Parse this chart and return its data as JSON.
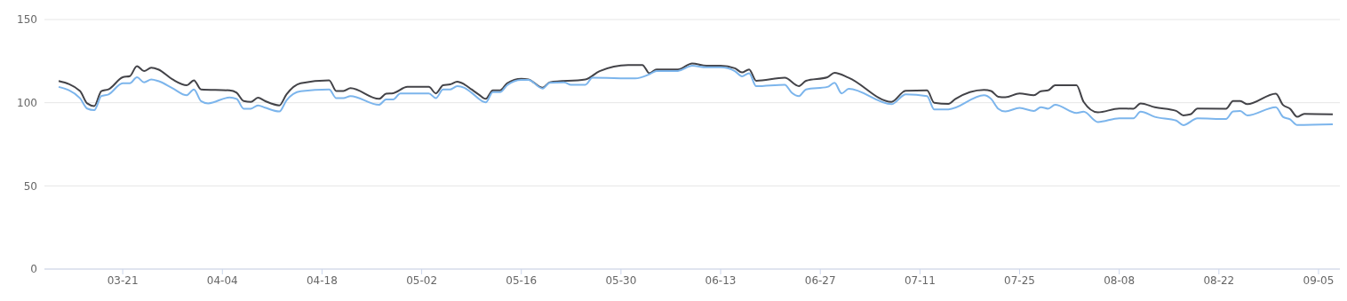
{
  "chart_data": {
    "type": "line",
    "xlim": [
      "--03-10",
      "--09-08"
    ],
    "xticks": [
      {
        "value": "--03-21",
        "label": "03-21"
      },
      {
        "value": "--04-04",
        "label": "04-04"
      },
      {
        "value": "--04-18",
        "label": "04-18"
      },
      {
        "value": "--05-02",
        "label": "05-02"
      },
      {
        "value": "--05-16",
        "label": "05-16"
      },
      {
        "value": "--05-30",
        "label": "05-30"
      },
      {
        "value": "--06-13",
        "label": "06-13"
      },
      {
        "value": "--06-27",
        "label": "06-27"
      },
      {
        "value": "--07-11",
        "label": "07-11"
      },
      {
        "value": "--07-25",
        "label": "07-25"
      },
      {
        "value": "--08-08",
        "label": "08-08"
      },
      {
        "value": "--08-22",
        "label": "08-22"
      },
      {
        "value": "--09-05",
        "label": "09-05"
      }
    ],
    "ylim": [
      0,
      150
    ],
    "yticks": [
      0,
      50,
      100,
      150
    ],
    "grid": "y",
    "marker": "none",
    "line_style": "solid",
    "series": [
      {
        "color": "#434348",
        "x": [
          "--03-12",
          "--03-15",
          "--03-16",
          "--03-17",
          "--03-18",
          "--03-19",
          "--03-21",
          "--03-22",
          "--03-23",
          "--03-24",
          "--03-25",
          "--03-26",
          "--03-28",
          "--03-30",
          "--03-31",
          "--04-01",
          "--04-05",
          "--04-06",
          "--04-07",
          "--04-08",
          "--04-09",
          "--04-10",
          "--04-12",
          "--04-13",
          "--04-15",
          "--04-19",
          "--04-20",
          "--04-21",
          "--04-22",
          "--04-26",
          "--04-27",
          "--04-28",
          "--04-30",
          "--05-03",
          "--05-04",
          "--05-05",
          "--05-06",
          "--05-07",
          "--05-08",
          "--05-09",
          "--05-10",
          "--05-11",
          "--05-12",
          "--05-13",
          "--05-14",
          "--05-16",
          "--05-17",
          "--05-19",
          "--05-20",
          "--05-25",
          "--05-27",
          "--05-31",
          "--06-02",
          "--06-03",
          "--06-04",
          "--06-07",
          "--06-09",
          "--06-11",
          "--06-13",
          "--06-15",
          "--06-16",
          "--06-17",
          "--06-18",
          "--06-22",
          "--06-24",
          "--06-25",
          "--06-28",
          "--06-29",
          "--07-01",
          "--07-07",
          "--07-09",
          "--07-12",
          "--07-13",
          "--07-15",
          "--07-16",
          "--07-20",
          "--07-21",
          "--07-22",
          "--07-23",
          "--07-25",
          "--07-27",
          "--07-28",
          "--07-29",
          "--07-30",
          "--08-02",
          "--08-03",
          "--08-05",
          "--08-08",
          "--08-10",
          "--08-11",
          "--08-13",
          "--08-16",
          "--08-17",
          "--08-18",
          "--08-19",
          "--08-23",
          "--08-24",
          "--08-25",
          "--08-26",
          "--08-30",
          "--08-31",
          "--09-01",
          "--09-02",
          "--09-03",
          "--09-07"
        ],
        "values": [
          113,
          107,
          99.6,
          98,
          107,
          108,
          115.3,
          116,
          122,
          119,
          121,
          120,
          114,
          110.5,
          113.5,
          108,
          107.4,
          106,
          101,
          100.5,
          103,
          101,
          98.4,
          105,
          111.7,
          113.5,
          107,
          107,
          108.7,
          102.3,
          105.4,
          105.7,
          109.5,
          109.5,
          105.6,
          110.5,
          111,
          112.6,
          111,
          108,
          105,
          102.3,
          107.4,
          107.4,
          111.7,
          114.4,
          114,
          109,
          112.3,
          114,
          119,
          122.7,
          122.7,
          117.7,
          120,
          120,
          123.6,
          122.2,
          122.2,
          120.7,
          118.2,
          120,
          113.2,
          115,
          110,
          113.2,
          115.3,
          118,
          115,
          100.5,
          107.2,
          107.4,
          100,
          99.3,
          102.3,
          107.7,
          107,
          103.6,
          103.3,
          105.6,
          104.5,
          106.9,
          107.4,
          110.5,
          110.5,
          100.5,
          94.2,
          96.5,
          96.4,
          99.6,
          97.3,
          95.1,
          92.4,
          93,
          96.5,
          96.4,
          101,
          101,
          99.1,
          105.4,
          98.7,
          96.4,
          91.5,
          93.3,
          93
        ]
      },
      {
        "color": "#7cb5ec",
        "x": [
          "--03-12",
          "--03-15",
          "--03-16",
          "--03-17",
          "--03-18",
          "--03-19",
          "--03-21",
          "--03-22",
          "--03-23",
          "--03-24",
          "--03-25",
          "--03-26",
          "--03-28",
          "--03-30",
          "--03-31",
          "--04-01",
          "--04-02",
          "--04-05",
          "--04-06",
          "--04-07",
          "--04-08",
          "--04-09",
          "--04-10",
          "--04-12",
          "--04-13",
          "--04-15",
          "--04-19",
          "--04-20",
          "--04-21",
          "--04-22",
          "--04-26",
          "--04-27",
          "--04-28",
          "--04-29",
          "--05-03",
          "--05-04",
          "--05-05",
          "--05-06",
          "--05-07",
          "--05-08",
          "--05-09",
          "--05-11",
          "--05-12",
          "--05-13",
          "--05-14",
          "--05-16",
          "--05-17",
          "--05-19",
          "--05-20",
          "--05-22",
          "--05-23",
          "--05-25",
          "--05-26",
          "--06-01",
          "--06-03",
          "--06-04",
          "--06-07",
          "--06-09",
          "--06-11",
          "--06-13",
          "--06-15",
          "--06-16",
          "--06-17",
          "--06-18",
          "--06-22",
          "--06-23",
          "--06-24",
          "--06-25",
          "--06-28",
          "--06-29",
          "--06-30",
          "--07-01",
          "--07-07",
          "--07-09",
          "--07-12",
          "--07-13",
          "--07-15",
          "--07-20",
          "--07-21",
          "--07-22",
          "--07-23",
          "--07-25",
          "--07-27",
          "--07-28",
          "--07-29",
          "--07-30",
          "--08-02",
          "--08-03",
          "--08-05",
          "--08-08",
          "--08-10",
          "--08-11",
          "--08-13",
          "--08-16",
          "--08-17",
          "--08-19",
          "--08-23",
          "--08-24",
          "--08-25",
          "--08-26",
          "--08-30",
          "--08-31",
          "--09-01",
          "--09-02",
          "--09-07"
        ],
        "values": [
          109.5,
          102.7,
          96.5,
          95.5,
          104,
          105,
          111.7,
          111.7,
          115.3,
          112.3,
          114,
          113,
          108.7,
          104.5,
          108,
          101,
          99.6,
          103.2,
          102.3,
          96.4,
          96.4,
          98.4,
          97,
          94.7,
          101.4,
          106.9,
          108,
          102.7,
          102.7,
          104,
          98.7,
          102,
          102,
          105.6,
          105.6,
          102.7,
          108,
          108,
          109.9,
          109,
          106,
          100.2,
          106.3,
          106.3,
          110.5,
          113.7,
          113.7,
          108.5,
          112,
          112.3,
          110.8,
          110.8,
          115,
          114.6,
          117.1,
          119.1,
          119.1,
          122.2,
          121.3,
          121.3,
          119,
          115.9,
          117.7,
          109.9,
          110.8,
          106,
          104,
          108,
          109.5,
          111.9,
          105.6,
          108.3,
          99.1,
          105,
          104,
          96,
          96,
          104.5,
          102.3,
          96.4,
          94.7,
          96.9,
          95,
          97.3,
          96.4,
          98.7,
          93.8,
          94.6,
          88.4,
          90.6,
          90.6,
          94.6,
          91.5,
          89.3,
          86.5,
          90.6,
          90.2,
          94.7,
          95,
          92.4,
          97.3,
          91.5,
          90,
          86.6,
          87
        ]
      }
    ]
  }
}
